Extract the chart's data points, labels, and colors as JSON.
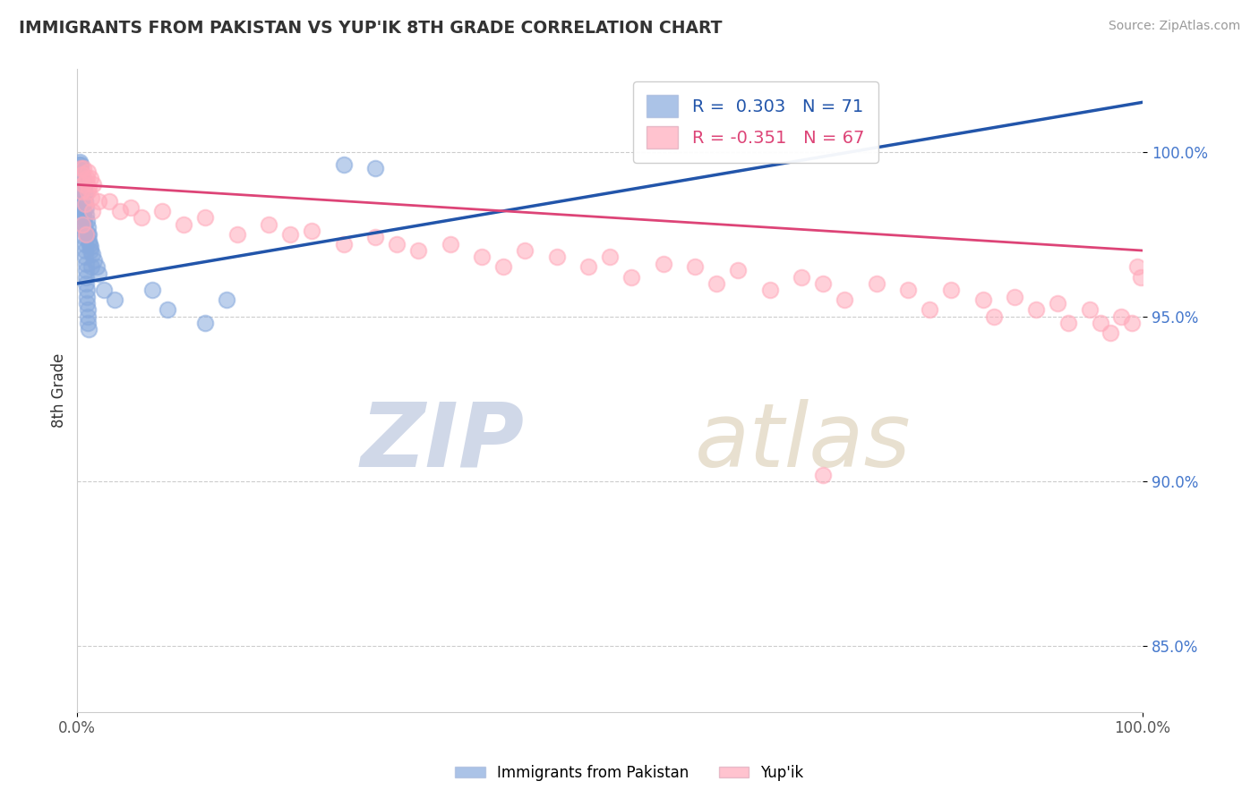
{
  "title": "IMMIGRANTS FROM PAKISTAN VS YUP'IK 8TH GRADE CORRELATION CHART",
  "source_text": "Source: ZipAtlas.com",
  "ylabel": "8th Grade",
  "xlabel_legend1": "Immigrants from Pakistan",
  "xlabel_legend2": "Yup'ik",
  "xlim": [
    0.0,
    100.0
  ],
  "ylim": [
    83.0,
    102.5
  ],
  "blue_R": 0.303,
  "blue_N": 71,
  "pink_R": -0.351,
  "pink_N": 67,
  "blue_color": "#88aadd",
  "pink_color": "#ffaabb",
  "blue_line_color": "#2255aa",
  "pink_line_color": "#dd4477",
  "background_color": "#ffffff",
  "grid_color": "#cccccc",
  "watermark_zip": "ZIP",
  "watermark_atlas": "atlas",
  "title_color": "#333333",
  "ytick_values": [
    85,
    90,
    95,
    100
  ],
  "blue_scatter_x": [
    0.15,
    0.18,
    0.2,
    0.22,
    0.25,
    0.28,
    0.3,
    0.32,
    0.35,
    0.38,
    0.4,
    0.42,
    0.45,
    0.48,
    0.5,
    0.52,
    0.55,
    0.58,
    0.6,
    0.62,
    0.65,
    0.68,
    0.7,
    0.72,
    0.75,
    0.78,
    0.8,
    0.82,
    0.85,
    0.88,
    0.9,
    0.92,
    0.95,
    0.98,
    1.0,
    1.05,
    1.1,
    1.15,
    1.2,
    1.3,
    0.2,
    0.25,
    0.3,
    0.35,
    0.4,
    0.45,
    0.5,
    0.55,
    0.6,
    0.65,
    0.7,
    0.75,
    0.8,
    0.85,
    0.9,
    0.95,
    1.0,
    1.1,
    1.2,
    1.4,
    1.6,
    1.8,
    2.0,
    2.5,
    3.5,
    7.0,
    8.5,
    12.0,
    14.0,
    25.0,
    28.0
  ],
  "blue_scatter_y": [
    99.6,
    99.5,
    99.7,
    99.4,
    99.3,
    99.5,
    99.6,
    99.4,
    99.2,
    99.3,
    99.0,
    98.8,
    98.6,
    98.9,
    98.5,
    98.7,
    98.4,
    98.2,
    98.0,
    97.8,
    97.6,
    97.4,
    97.2,
    97.0,
    96.8,
    96.6,
    96.4,
    96.2,
    96.0,
    95.8,
    95.6,
    95.4,
    95.2,
    95.0,
    94.8,
    94.6,
    97.5,
    97.2,
    97.0,
    96.5,
    98.8,
    98.6,
    98.4,
    98.2,
    98.0,
    97.8,
    99.2,
    99.1,
    99.0,
    98.9,
    98.7,
    98.5,
    98.3,
    98.1,
    97.9,
    97.7,
    97.5,
    97.3,
    97.1,
    96.9,
    96.7,
    96.5,
    96.3,
    95.8,
    95.5,
    95.8,
    95.2,
    94.8,
    95.5,
    99.6,
    99.5
  ],
  "pink_scatter_x": [
    0.3,
    0.5,
    0.8,
    1.0,
    1.2,
    1.5,
    0.4,
    0.6,
    0.9,
    1.1,
    1.3,
    0.7,
    1.4,
    0.5,
    0.8,
    3.0,
    5.0,
    8.0,
    12.0,
    18.0,
    22.0,
    28.0,
    35.0,
    42.0,
    50.0,
    55.0,
    62.0,
    68.0,
    75.0,
    82.0,
    88.0,
    92.0,
    95.0,
    98.0,
    99.0,
    99.5,
    99.8,
    45.0,
    58.0,
    70.0,
    78.0,
    85.0,
    90.0,
    96.0,
    15.0,
    25.0,
    32.0,
    38.0,
    48.0,
    52.0,
    60.0,
    65.0,
    72.0,
    80.0,
    86.0,
    93.0,
    97.0,
    0.6,
    1.0,
    2.0,
    4.0,
    6.0,
    10.0,
    20.0,
    30.0,
    40.0,
    70.0
  ],
  "pink_scatter_y": [
    99.5,
    99.3,
    99.1,
    99.4,
    99.2,
    99.0,
    98.8,
    99.5,
    99.2,
    98.9,
    98.6,
    98.4,
    98.2,
    97.8,
    97.5,
    98.5,
    98.3,
    98.2,
    98.0,
    97.8,
    97.6,
    97.4,
    97.2,
    97.0,
    96.8,
    96.6,
    96.4,
    96.2,
    96.0,
    95.8,
    95.6,
    95.4,
    95.2,
    95.0,
    94.8,
    96.5,
    96.2,
    96.8,
    96.5,
    96.0,
    95.8,
    95.5,
    95.2,
    94.8,
    97.5,
    97.2,
    97.0,
    96.8,
    96.5,
    96.2,
    96.0,
    95.8,
    95.5,
    95.2,
    95.0,
    94.8,
    94.5,
    99.0,
    98.8,
    98.5,
    98.2,
    98.0,
    97.8,
    97.5,
    97.2,
    96.5,
    90.2
  ]
}
